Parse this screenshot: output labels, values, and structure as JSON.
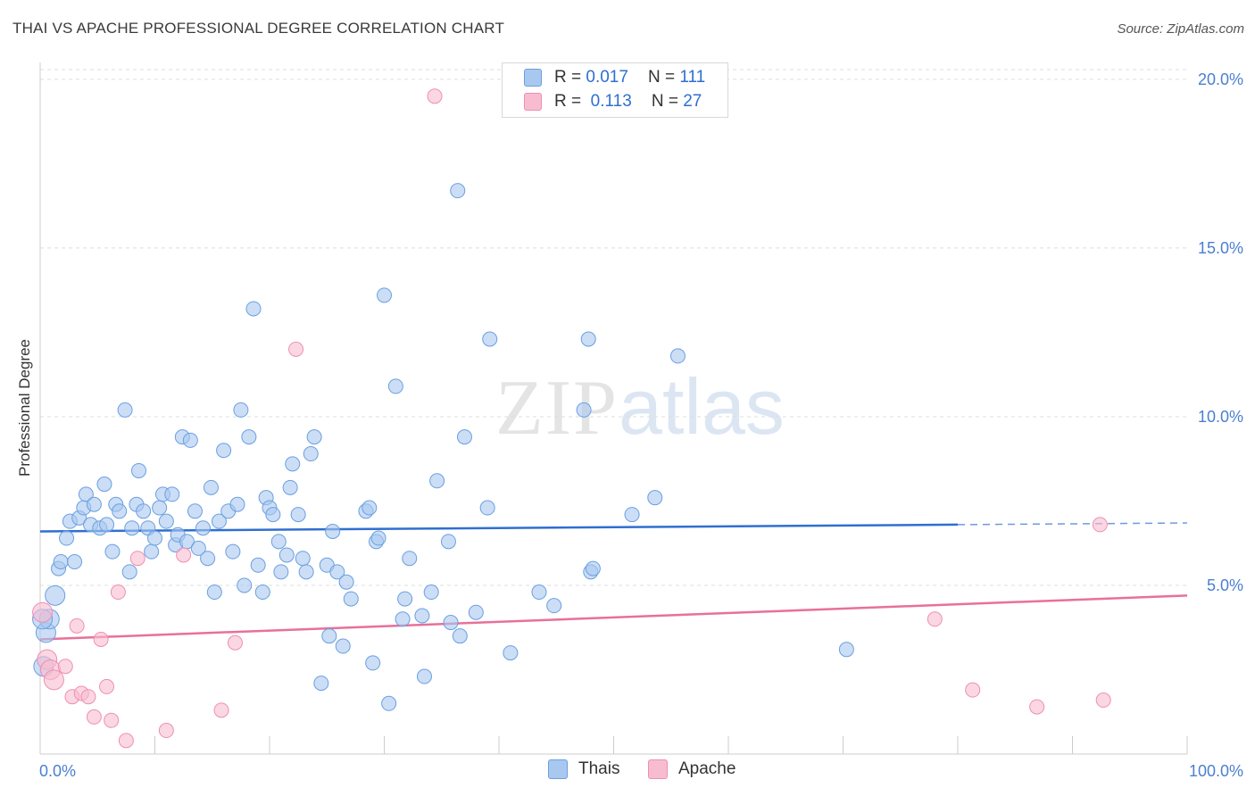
{
  "title": "THAI VS APACHE PROFESSIONAL DEGREE CORRELATION CHART",
  "source": "Source: ZipAtlas.com",
  "watermark": {
    "zip": "ZIP",
    "atlas": "atlas"
  },
  "legend": {
    "rows": [
      {
        "r_label": "R =",
        "r_value": "0.017",
        "n_label": "N =",
        "n_value": "111"
      },
      {
        "r_label": "R =",
        "r_value": " 0.113",
        "n_label": "N =",
        "n_value": "27"
      }
    ]
  },
  "colors": {
    "thais_fill": "#a8c8f0",
    "thais_stroke": "#6a9fe0",
    "thais_line": "#2f6fd0",
    "apache_fill": "#f8bcd0",
    "apache_stroke": "#ee8fb0",
    "apache_line": "#e8709a",
    "grid": "#dddddd",
    "tick_label": "#4a7fd0"
  },
  "chart_data": {
    "type": "scatter",
    "title": "THAI VS APACHE PROFESSIONAL DEGREE CORRELATION CHART",
    "xlabel": "",
    "ylabel": "Professional Degree",
    "xlim": [
      0,
      100
    ],
    "ylim": [
      0,
      20.5
    ],
    "x_tick_labels": [
      "0.0%",
      "100.0%"
    ],
    "y_ticks": [
      5,
      10,
      15,
      20
    ],
    "y_tick_labels": [
      "5.0%",
      "10.0%",
      "15.0%",
      "20.0%"
    ],
    "grid": true,
    "legend_position": "top-center",
    "series": [
      {
        "name": "Thais",
        "r": 0.017,
        "n": 111,
        "trend": {
          "x": [
            0,
            80
          ],
          "y": [
            6.6,
            6.8
          ],
          "dashed_to": [
            100,
            6.85
          ]
        },
        "points": [
          [
            0.3,
            2.6
          ],
          [
            0.5,
            3.6
          ],
          [
            0.8,
            4.0
          ],
          [
            1.3,
            4.7
          ],
          [
            1.6,
            5.5
          ],
          [
            1.8,
            5.7
          ],
          [
            2.3,
            6.4
          ],
          [
            2.6,
            6.9
          ],
          [
            3.0,
            5.7
          ],
          [
            3.4,
            7.0
          ],
          [
            3.8,
            7.3
          ],
          [
            4.0,
            7.7
          ],
          [
            4.4,
            6.8
          ],
          [
            4.7,
            7.4
          ],
          [
            5.2,
            6.7
          ],
          [
            5.6,
            8.0
          ],
          [
            5.8,
            6.8
          ],
          [
            6.3,
            6.0
          ],
          [
            6.6,
            7.4
          ],
          [
            6.9,
            7.2
          ],
          [
            7.4,
            10.2
          ],
          [
            7.8,
            5.4
          ],
          [
            8.0,
            6.7
          ],
          [
            8.4,
            7.4
          ],
          [
            8.6,
            8.4
          ],
          [
            9.0,
            7.2
          ],
          [
            9.4,
            6.7
          ],
          [
            9.7,
            6.0
          ],
          [
            10.0,
            6.4
          ],
          [
            10.4,
            7.3
          ],
          [
            10.7,
            7.7
          ],
          [
            11.0,
            6.9
          ],
          [
            11.5,
            7.7
          ],
          [
            11.8,
            6.2
          ],
          [
            12.0,
            6.5
          ],
          [
            12.4,
            9.4
          ],
          [
            12.8,
            6.3
          ],
          [
            13.1,
            9.3
          ],
          [
            13.5,
            7.2
          ],
          [
            13.8,
            6.1
          ],
          [
            14.2,
            6.7
          ],
          [
            14.6,
            5.8
          ],
          [
            14.9,
            7.9
          ],
          [
            15.2,
            4.8
          ],
          [
            15.6,
            6.9
          ],
          [
            16.0,
            9.0
          ],
          [
            16.4,
            7.2
          ],
          [
            16.8,
            6.0
          ],
          [
            17.2,
            7.4
          ],
          [
            17.5,
            10.2
          ],
          [
            17.8,
            5.0
          ],
          [
            18.2,
            9.4
          ],
          [
            18.6,
            13.2
          ],
          [
            19.0,
            5.6
          ],
          [
            19.4,
            4.8
          ],
          [
            19.7,
            7.6
          ],
          [
            20.0,
            7.3
          ],
          [
            20.3,
            7.1
          ],
          [
            20.8,
            6.3
          ],
          [
            21.0,
            5.4
          ],
          [
            21.5,
            5.9
          ],
          [
            21.8,
            7.9
          ],
          [
            22.0,
            8.6
          ],
          [
            22.5,
            7.1
          ],
          [
            22.9,
            5.8
          ],
          [
            23.2,
            5.4
          ],
          [
            23.6,
            8.9
          ],
          [
            23.9,
            9.4
          ],
          [
            24.5,
            2.1
          ],
          [
            25.0,
            5.6
          ],
          [
            25.2,
            3.5
          ],
          [
            25.5,
            6.6
          ],
          [
            25.9,
            5.4
          ],
          [
            26.4,
            3.2
          ],
          [
            26.7,
            5.1
          ],
          [
            27.1,
            4.6
          ],
          [
            28.4,
            7.2
          ],
          [
            28.7,
            7.3
          ],
          [
            29.0,
            2.7
          ],
          [
            29.3,
            6.3
          ],
          [
            29.5,
            6.4
          ],
          [
            30.0,
            13.6
          ],
          [
            30.4,
            1.5
          ],
          [
            31.0,
            10.9
          ],
          [
            31.6,
            4.0
          ],
          [
            31.8,
            4.6
          ],
          [
            32.2,
            5.8
          ],
          [
            33.3,
            4.1
          ],
          [
            33.5,
            2.3
          ],
          [
            34.1,
            4.8
          ],
          [
            34.6,
            8.1
          ],
          [
            35.6,
            6.3
          ],
          [
            35.8,
            3.9
          ],
          [
            36.4,
            16.7
          ],
          [
            36.6,
            3.5
          ],
          [
            37.0,
            9.4
          ],
          [
            38.0,
            4.2
          ],
          [
            39.0,
            7.3
          ],
          [
            39.2,
            12.3
          ],
          [
            41.0,
            3.0
          ],
          [
            43.5,
            4.8
          ],
          [
            44.8,
            4.4
          ],
          [
            47.4,
            10.2
          ],
          [
            47.8,
            12.3
          ],
          [
            48.0,
            5.4
          ],
          [
            48.2,
            5.5
          ],
          [
            51.6,
            7.1
          ],
          [
            53.6,
            7.6
          ],
          [
            55.6,
            11.8
          ],
          [
            70.3,
            3.1
          ],
          [
            0.2,
            4.0
          ]
        ]
      },
      {
        "name": "Apache",
        "r": 0.113,
        "n": 27,
        "trend": {
          "x": [
            0,
            100
          ],
          "y": [
            3.4,
            4.7
          ]
        },
        "points": [
          [
            0.2,
            4.2
          ],
          [
            0.6,
            2.8
          ],
          [
            0.9,
            2.5
          ],
          [
            1.2,
            2.2
          ],
          [
            2.2,
            2.6
          ],
          [
            2.8,
            1.7
          ],
          [
            3.2,
            3.8
          ],
          [
            3.6,
            1.8
          ],
          [
            4.2,
            1.7
          ],
          [
            4.7,
            1.1
          ],
          [
            5.3,
            3.4
          ],
          [
            5.8,
            2.0
          ],
          [
            6.2,
            1.0
          ],
          [
            6.8,
            4.8
          ],
          [
            7.5,
            0.4
          ],
          [
            8.5,
            5.8
          ],
          [
            11.0,
            0.7
          ],
          [
            12.5,
            5.9
          ],
          [
            15.8,
            1.3
          ],
          [
            17.0,
            3.3
          ],
          [
            22.3,
            12.0
          ],
          [
            34.4,
            19.5
          ],
          [
            78.0,
            4.0
          ],
          [
            81.3,
            1.9
          ],
          [
            86.9,
            1.4
          ],
          [
            92.4,
            6.8
          ],
          [
            92.7,
            1.6
          ]
        ]
      }
    ]
  },
  "bottom_legend": {
    "thais": "Thais",
    "apache": "Apache"
  }
}
